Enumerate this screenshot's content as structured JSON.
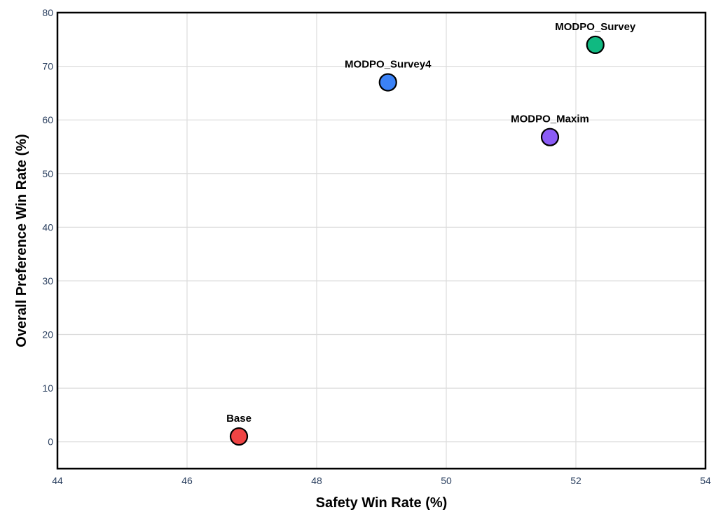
{
  "chart_data": {
    "type": "scatter",
    "xlabel": "Safety Win Rate (%)",
    "ylabel": "Overall Preference Win Rate (%)",
    "xlim": [
      44,
      54
    ],
    "ylim": [
      -5,
      80
    ],
    "xticks": [
      44,
      46,
      48,
      50,
      52,
      54
    ],
    "yticks": [
      0,
      10,
      20,
      30,
      40,
      50,
      60,
      70,
      80
    ],
    "grid": true,
    "points": [
      {
        "label": "Base",
        "x": 46.8,
        "y": 1.0,
        "color": "#ef4444"
      },
      {
        "label": "MODPO_Survey4",
        "x": 49.1,
        "y": 67.0,
        "color": "#3b82f6"
      },
      {
        "label": "MODPO_Maxim",
        "x": 51.6,
        "y": 56.8,
        "color": "#8b5cf6"
      },
      {
        "label": "MODPO_Survey",
        "x": 52.3,
        "y": 74.0,
        "color": "#10b981"
      }
    ]
  }
}
